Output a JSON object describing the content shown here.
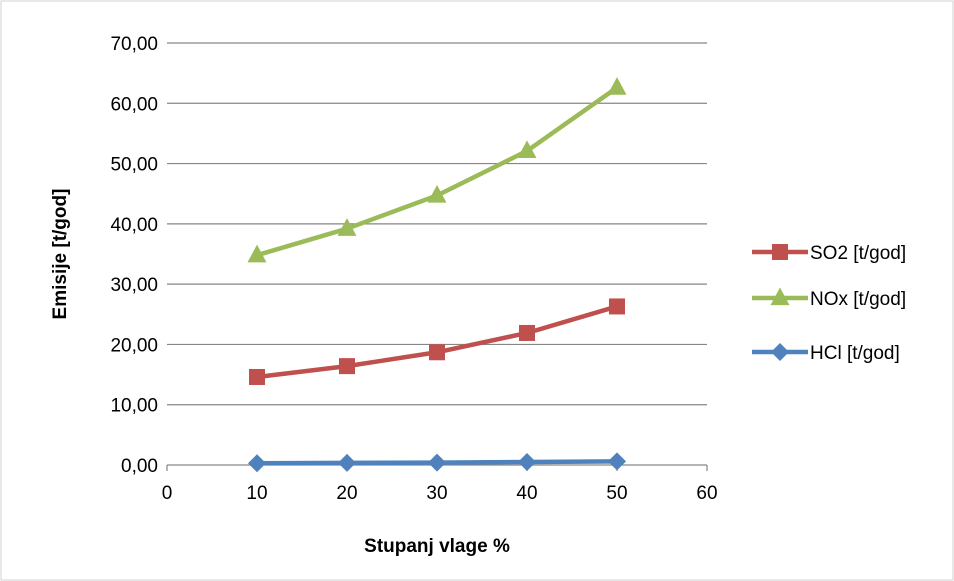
{
  "chart_data": {
    "type": "scatter",
    "mode": "lines+markers",
    "xlabel": "Stupanj vlage %",
    "ylabel": "Emisije [t/god]",
    "xlim": [
      0,
      60
    ],
    "ylim": [
      0,
      70
    ],
    "x_ticks": [
      "0",
      "10",
      "20",
      "30",
      "40",
      "50",
      "60"
    ],
    "y_ticks": [
      "0,00",
      "10,00",
      "20,00",
      "30,00",
      "40,00",
      "50,00",
      "60,00",
      "70,00"
    ],
    "grid": {
      "horizontal": true,
      "vertical": false
    },
    "legend_position": "right",
    "series": [
      {
        "name": "SO2 [t/god]",
        "marker": "square",
        "color": "#C0504D",
        "x": [
          10,
          20,
          30,
          40,
          50
        ],
        "y": [
          14.6,
          16.4,
          18.7,
          21.9,
          26.3
        ]
      },
      {
        "name": "NOx [t/god]",
        "marker": "triangle",
        "color": "#9BBB59",
        "x": [
          10,
          20,
          30,
          40,
          50
        ],
        "y": [
          34.8,
          39.2,
          44.7,
          52.1,
          62.6
        ]
      },
      {
        "name": "HCl [t/god]",
        "marker": "diamond",
        "color": "#4F81BD",
        "x": [
          10,
          20,
          30,
          40,
          50
        ],
        "y": [
          0.3,
          0.35,
          0.4,
          0.5,
          0.6
        ]
      }
    ]
  }
}
